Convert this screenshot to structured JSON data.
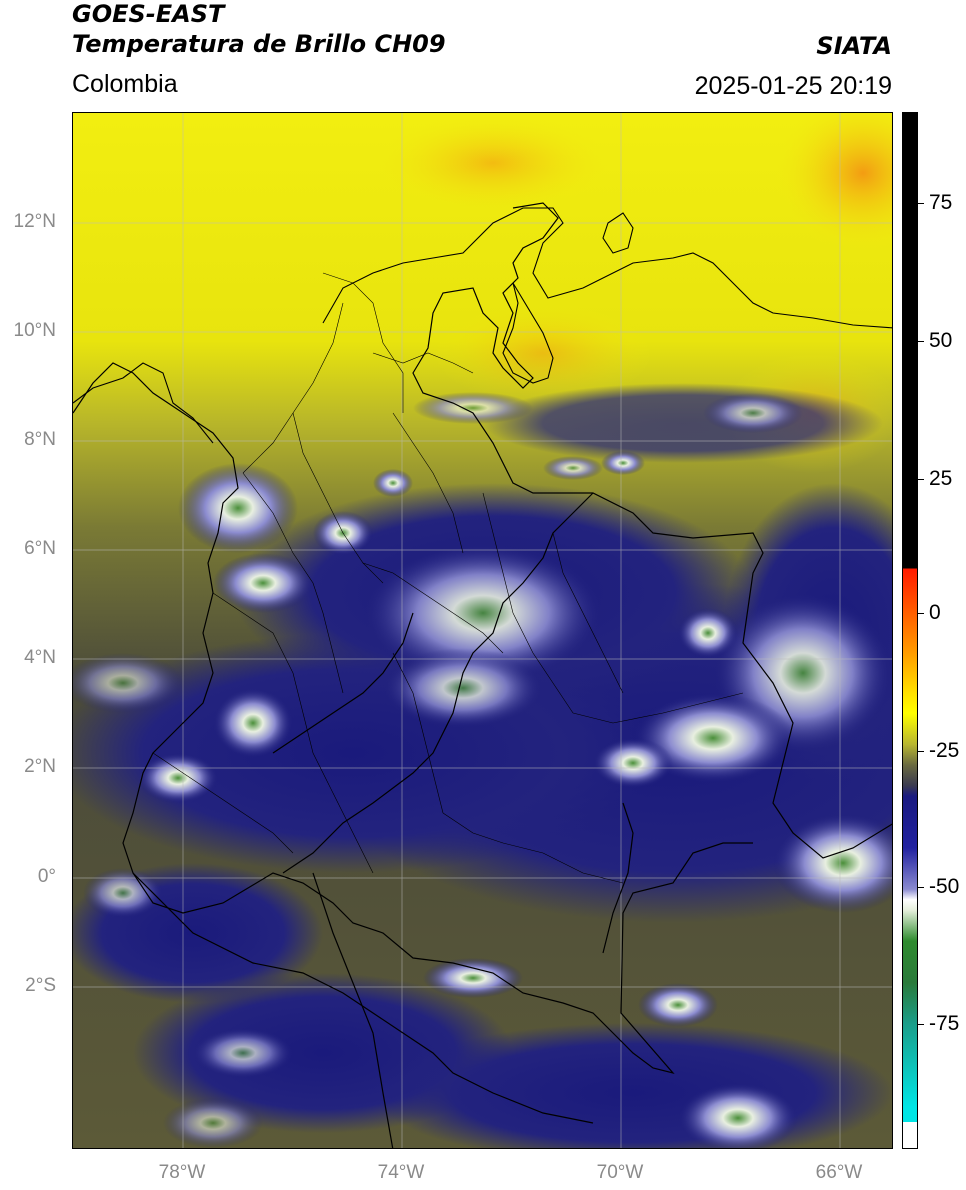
{
  "header": {
    "satellite": "GOES-EAST",
    "product": "Temperatura de Brillo CH09",
    "agency": "SIATA",
    "region": "Colombia",
    "datetime": "2025-01-25 20:19"
  },
  "map": {
    "projection": "PlateCarree",
    "lat_range": [
      -5.0,
      14.0
    ],
    "lon_range": [
      -80.0,
      -65.0
    ],
    "lat_ticks": [
      "12°N",
      "10°N",
      "8°N",
      "6°N",
      "4°N",
      "2°N",
      "0°",
      "2°S"
    ],
    "lon_ticks": [
      "78°W",
      "74°W",
      "70°W",
      "66°W"
    ],
    "grid": true,
    "borders": "black country & department lines"
  },
  "colorbar": {
    "tick_labels": [
      "75",
      "50",
      "25",
      "0",
      "-25",
      "-50",
      "-75"
    ],
    "palette_top_to_bottom": [
      "#000000",
      "#ff1a00",
      "#ff9900",
      "#ffff00",
      "#5a5a30",
      "#1a1a80",
      "#ffffff",
      "#2e8b2e",
      "#00e5e5",
      "#ffffff"
    ]
  }
}
